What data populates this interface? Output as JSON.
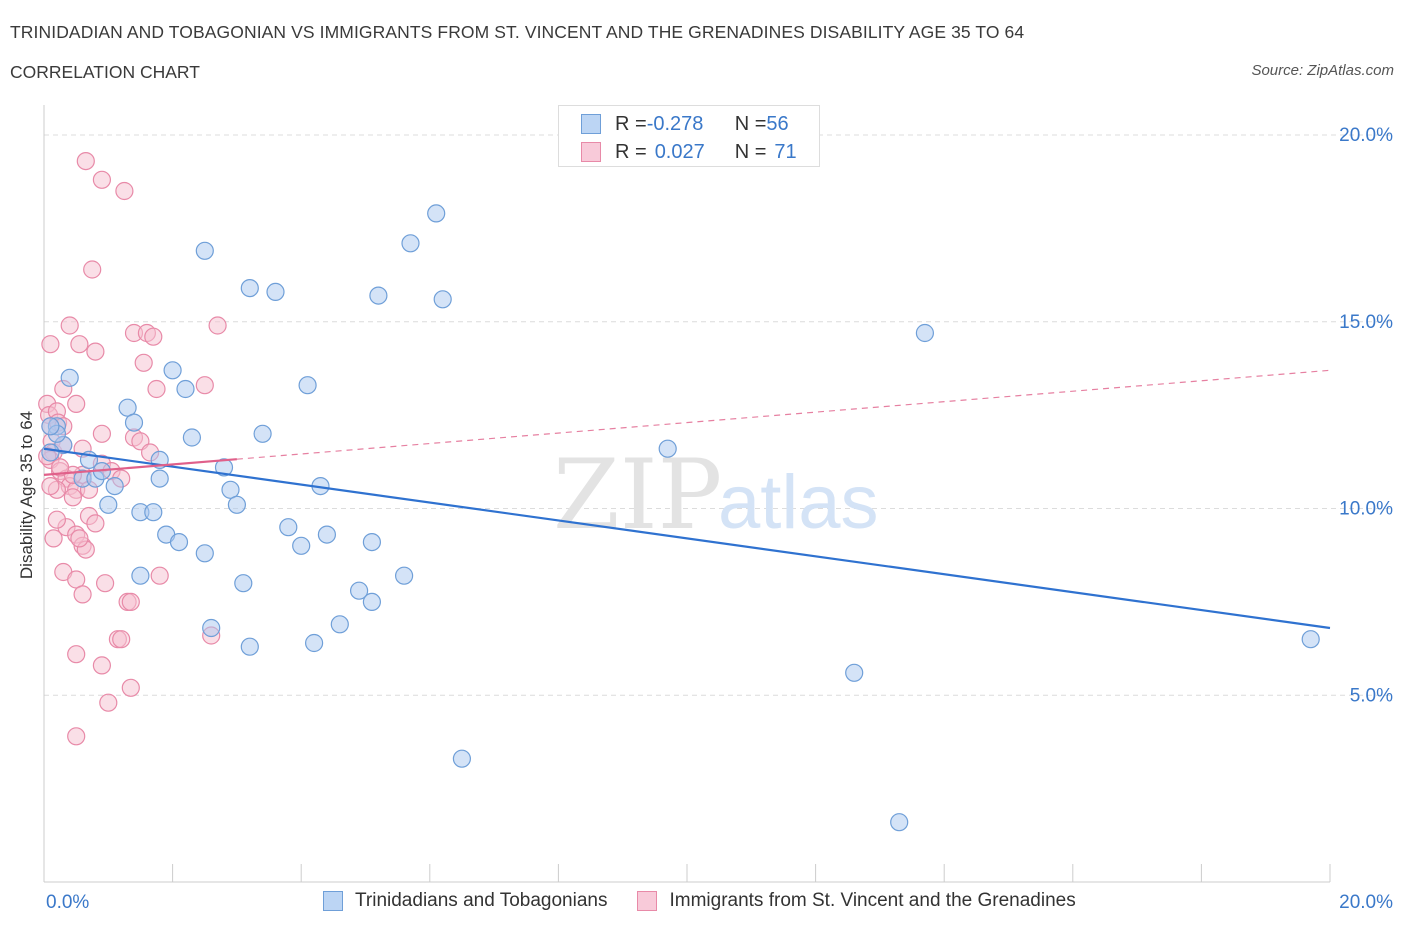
{
  "header": {
    "title": "TRINIDADIAN AND TOBAGONIAN VS IMMIGRANTS FROM ST. VINCENT AND THE GRENADINES DISABILITY AGE 35 TO 64",
    "subtitle": "CORRELATION CHART",
    "source": "Source: ZipAtlas.com"
  },
  "watermark": {
    "zip": "ZIP",
    "atlas": "atlas"
  },
  "legend": {
    "row1": {
      "r_label": "R = ",
      "r_value": "-0.278",
      "n_label": "N = ",
      "n_value": "56"
    },
    "row2": {
      "r_label": "R = ",
      "r_value": "0.027",
      "n_label": "N = ",
      "n_value": "71"
    }
  },
  "colors": {
    "blue_fill": "#a9c8f0",
    "blue_stroke": "#6f9fd8",
    "blue_line": "#2f72d0",
    "pink_fill": "#f6bfd0",
    "pink_stroke": "#e88aa8",
    "pink_line": "#e0608a",
    "axis_text": "#3a78c9"
  },
  "chart_data": {
    "type": "scatter",
    "title": "TRINIDADIAN AND TOBAGONIAN VS IMMIGRANTS FROM ST. VINCENT AND THE GRENADINES DISABILITY AGE 35 TO 64",
    "xlabel": "",
    "ylabel": "Disability Age 35 to 64",
    "xlim": [
      0,
      20
    ],
    "ylim": [
      0,
      20
    ],
    "x_tick_labels": [
      "0.0%",
      "20.0%"
    ],
    "y_tick_values": [
      5,
      10,
      15,
      20
    ],
    "y_tick_labels": [
      "5.0%",
      "10.0%",
      "15.0%",
      "20.0%"
    ],
    "grid": true,
    "legend_position": "bottom",
    "series": [
      {
        "name": "Trinidadians and Tobagonians",
        "color": "#a9c8f0",
        "trend": {
          "x": [
            0,
            20
          ],
          "y": [
            11.6,
            6.8
          ]
        },
        "points": [
          [
            0.2,
            12.2
          ],
          [
            0.3,
            11.7
          ],
          [
            0.1,
            11.5
          ],
          [
            0.2,
            12.0
          ],
          [
            0.4,
            13.5
          ],
          [
            0.6,
            10.8
          ],
          [
            0.7,
            11.3
          ],
          [
            0.8,
            10.8
          ],
          [
            0.9,
            11.0
          ],
          [
            1.0,
            10.1
          ],
          [
            1.1,
            10.6
          ],
          [
            1.3,
            12.7
          ],
          [
            1.4,
            12.3
          ],
          [
            1.5,
            9.9
          ],
          [
            1.7,
            9.9
          ],
          [
            1.8,
            11.3
          ],
          [
            1.8,
            10.8
          ],
          [
            1.9,
            9.3
          ],
          [
            2.0,
            13.7
          ],
          [
            2.1,
            9.1
          ],
          [
            2.2,
            13.2
          ],
          [
            2.3,
            11.9
          ],
          [
            2.5,
            8.8
          ],
          [
            2.5,
            16.9
          ],
          [
            2.6,
            6.8
          ],
          [
            2.8,
            11.1
          ],
          [
            2.9,
            10.5
          ],
          [
            3.0,
            10.1
          ],
          [
            3.1,
            8.0
          ],
          [
            3.2,
            6.3
          ],
          [
            3.2,
            15.9
          ],
          [
            3.4,
            12.0
          ],
          [
            3.6,
            15.8
          ],
          [
            3.8,
            9.5
          ],
          [
            4.0,
            9.0
          ],
          [
            4.1,
            13.3
          ],
          [
            4.2,
            6.4
          ],
          [
            4.3,
            10.6
          ],
          [
            4.4,
            9.3
          ],
          [
            4.6,
            6.9
          ],
          [
            4.9,
            7.8
          ],
          [
            5.1,
            9.1
          ],
          [
            5.1,
            7.5
          ],
          [
            5.2,
            15.7
          ],
          [
            5.6,
            8.2
          ],
          [
            5.7,
            17.1
          ],
          [
            6.1,
            17.9
          ],
          [
            6.2,
            15.6
          ],
          [
            6.5,
            3.3
          ],
          [
            9.7,
            11.6
          ],
          [
            12.6,
            5.6
          ],
          [
            13.3,
            1.6
          ],
          [
            13.7,
            14.7
          ],
          [
            19.7,
            6.5
          ],
          [
            0.1,
            12.2
          ],
          [
            1.5,
            8.2
          ]
        ]
      },
      {
        "name": "Immigrants from St. Vincent and the Grenadines",
        "color": "#f6bfd0",
        "trend": {
          "x": [
            0,
            20
          ],
          "y": [
            10.9,
            13.7
          ]
        },
        "trend_solid_to_x": 3.0,
        "points": [
          [
            0.05,
            12.8
          ],
          [
            0.08,
            12.5
          ],
          [
            0.1,
            12.2
          ],
          [
            0.12,
            11.8
          ],
          [
            0.15,
            11.5
          ],
          [
            0.1,
            11.3
          ],
          [
            0.2,
            12.6
          ],
          [
            0.22,
            12.3
          ],
          [
            0.3,
            12.2
          ],
          [
            0.3,
            11.7
          ],
          [
            0.25,
            11.0
          ],
          [
            0.35,
            10.8
          ],
          [
            0.4,
            10.6
          ],
          [
            0.5,
            10.5
          ],
          [
            0.45,
            10.3
          ],
          [
            0.6,
            10.9
          ],
          [
            0.7,
            10.5
          ],
          [
            0.35,
            9.5
          ],
          [
            0.5,
            9.3
          ],
          [
            0.2,
            9.7
          ],
          [
            0.15,
            9.2
          ],
          [
            0.7,
            9.8
          ],
          [
            0.8,
            9.6
          ],
          [
            0.6,
            9.0
          ],
          [
            0.65,
            8.9
          ],
          [
            0.3,
            8.3
          ],
          [
            0.5,
            8.1
          ],
          [
            0.95,
            8.0
          ],
          [
            0.6,
            7.7
          ],
          [
            1.3,
            7.5
          ],
          [
            1.35,
            7.5
          ],
          [
            0.5,
            6.1
          ],
          [
            1.15,
            6.5
          ],
          [
            1.2,
            6.5
          ],
          [
            0.9,
            5.8
          ],
          [
            1.35,
            5.2
          ],
          [
            1.0,
            4.8
          ],
          [
            0.5,
            3.9
          ],
          [
            0.1,
            14.4
          ],
          [
            0.4,
            14.9
          ],
          [
            0.55,
            14.4
          ],
          [
            0.8,
            14.2
          ],
          [
            1.4,
            14.7
          ],
          [
            1.6,
            14.7
          ],
          [
            1.7,
            14.6
          ],
          [
            1.55,
            13.9
          ],
          [
            1.75,
            13.2
          ],
          [
            2.5,
            13.3
          ],
          [
            2.6,
            6.6
          ],
          [
            2.7,
            14.9
          ],
          [
            0.3,
            13.2
          ],
          [
            0.5,
            12.8
          ],
          [
            0.6,
            11.6
          ],
          [
            0.9,
            11.2
          ],
          [
            1.05,
            11.0
          ],
          [
            1.2,
            10.8
          ],
          [
            1.4,
            11.9
          ],
          [
            1.5,
            11.8
          ],
          [
            1.65,
            11.5
          ],
          [
            1.8,
            8.2
          ],
          [
            0.9,
            12.0
          ],
          [
            0.75,
            16.4
          ],
          [
            0.65,
            19.3
          ],
          [
            0.9,
            18.8
          ],
          [
            1.25,
            18.5
          ],
          [
            0.2,
            10.5
          ],
          [
            0.45,
            10.9
          ],
          [
            0.55,
            9.2
          ],
          [
            0.05,
            11.4
          ],
          [
            0.1,
            10.6
          ],
          [
            0.25,
            11.1
          ]
        ]
      }
    ]
  },
  "bottom_legend": {
    "item1": "Trinidadians and Tobagonians",
    "item2": "Immigrants from St. Vincent and the Grenadines"
  }
}
